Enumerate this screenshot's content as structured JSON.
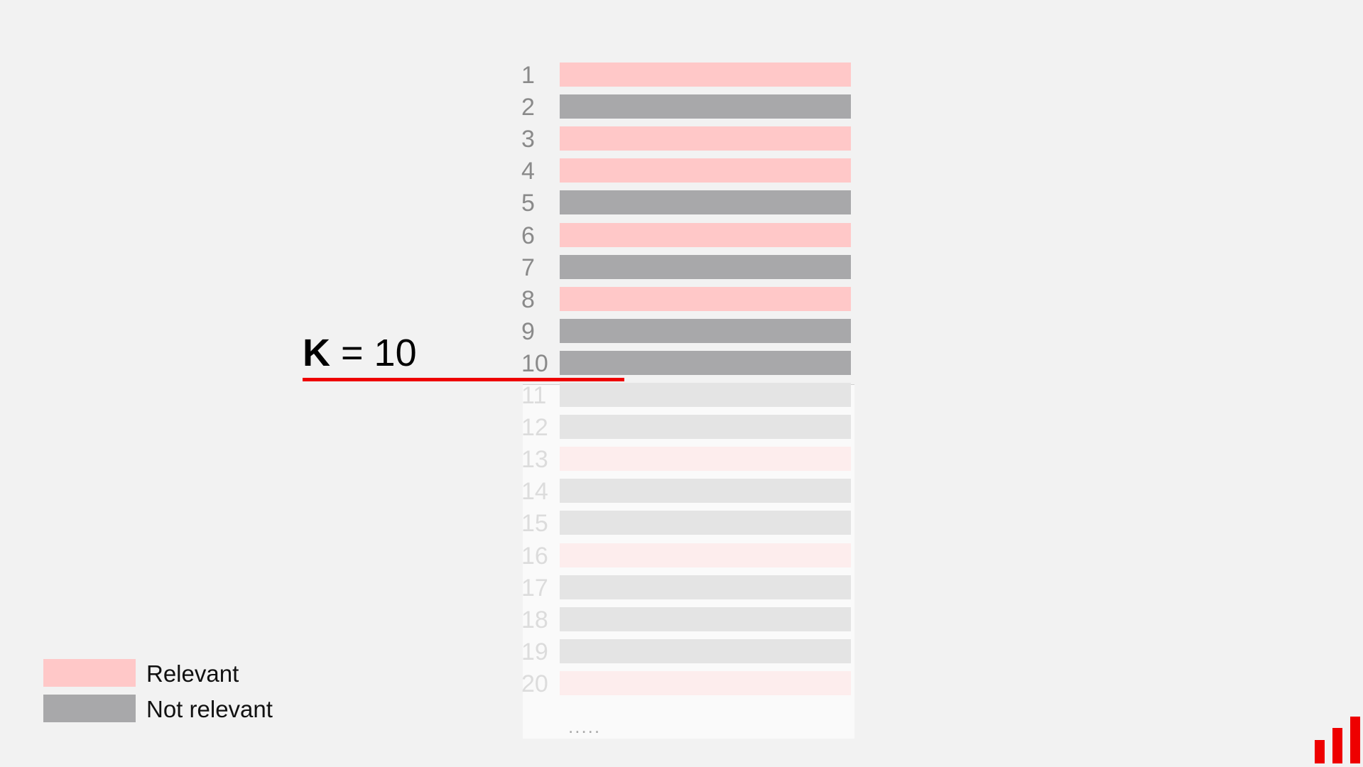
{
  "k_label": {
    "symbol": "K",
    "equals": "= 10"
  },
  "cutoff_k": 10,
  "ranking": [
    {
      "rank": "1",
      "relevant": true
    },
    {
      "rank": "2",
      "relevant": false
    },
    {
      "rank": "3",
      "relevant": true
    },
    {
      "rank": "4",
      "relevant": true
    },
    {
      "rank": "5",
      "relevant": false
    },
    {
      "rank": "6",
      "relevant": true
    },
    {
      "rank": "7",
      "relevant": false
    },
    {
      "rank": "8",
      "relevant": true
    },
    {
      "rank": "9",
      "relevant": false
    },
    {
      "rank": "10",
      "relevant": false
    },
    {
      "rank": "11",
      "relevant": false
    },
    {
      "rank": "12",
      "relevant": false
    },
    {
      "rank": "13",
      "relevant": true
    },
    {
      "rank": "14",
      "relevant": false
    },
    {
      "rank": "15",
      "relevant": false
    },
    {
      "rank": "16",
      "relevant": true
    },
    {
      "rank": "17",
      "relevant": false
    },
    {
      "rank": "18",
      "relevant": false
    },
    {
      "rank": "19",
      "relevant": false
    },
    {
      "rank": "20",
      "relevant": true
    }
  ],
  "ellipsis": ".....",
  "legend": [
    {
      "label": "Relevant",
      "color": "#ffc8c8"
    },
    {
      "label": "Not relevant",
      "color": "#a8a8aa"
    }
  ],
  "colors": {
    "relevant": "#ffc8c8",
    "not_relevant": "#a8a8aa",
    "relevant_faded": "#fdeded",
    "not_relevant_faded": "#e4e4e4",
    "accent": "#ee0000",
    "background": "#f2f2f2"
  },
  "logo": {
    "icon": "bar-chart-logo-icon"
  }
}
